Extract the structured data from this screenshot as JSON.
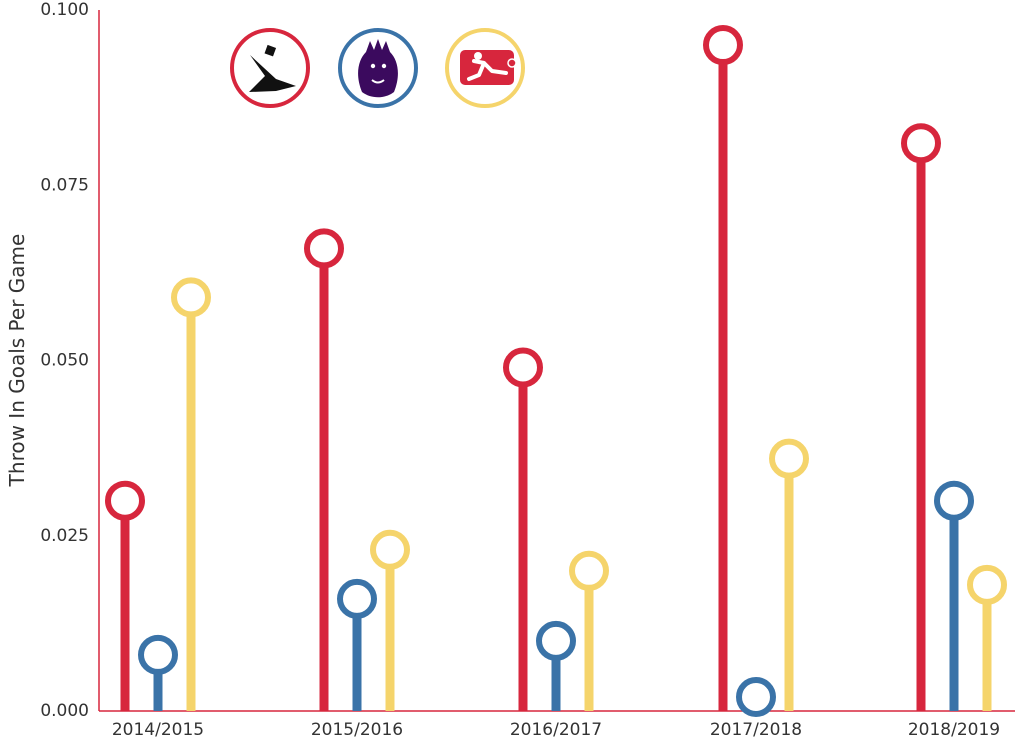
{
  "chart_data": {
    "type": "lollipop",
    "title": "",
    "ylabel": "Throw In Goals Per Game",
    "xlabel": "",
    "ylim": [
      0,
      0.1
    ],
    "yticks": [
      "0.000",
      "0.025",
      "0.050",
      "0.075",
      "0.100"
    ],
    "categories": [
      "2014/2015",
      "2015/2016",
      "2016/2017",
      "2017/2018",
      "2018/2019"
    ],
    "series": [
      {
        "logo": "allsvenskan-logo",
        "color": "#d7263d",
        "values": [
          0.03,
          0.066,
          0.049,
          0.095,
          0.081
        ]
      },
      {
        "logo": "premier-league-logo",
        "color": "#3a73a8",
        "values": [
          0.008,
          0.016,
          0.01,
          0.002,
          0.03
        ]
      },
      {
        "logo": "bundesliga-logo",
        "color": "#f5d46b",
        "values": [
          0.059,
          0.023,
          0.02,
          0.036,
          0.018
        ]
      }
    ],
    "grid": false,
    "legend": "top-left"
  }
}
